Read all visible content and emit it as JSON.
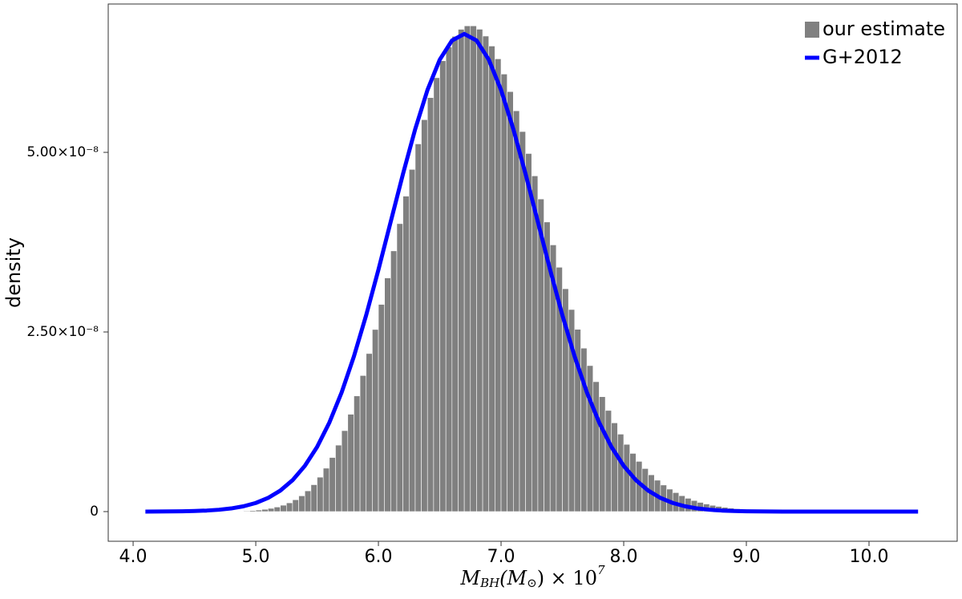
{
  "chart_data": {
    "type": "histogram",
    "ylabel": "density",
    "xlabel": [
      "M",
      "BH",
      "(M",
      "⊙",
      ") × 10",
      "7"
    ],
    "xlim": [
      3.797,
      10.719
    ],
    "ylim": [
      -4.13e-09,
      7.065e-08
    ],
    "xticks": [
      {
        "value": 4,
        "label": "4.0"
      },
      {
        "value": 5,
        "label": "5.0"
      },
      {
        "value": 6,
        "label": "6.0"
      },
      {
        "value": 7,
        "label": "7.0"
      },
      {
        "value": 8,
        "label": "8.0"
      },
      {
        "value": 9,
        "label": "9.0"
      },
      {
        "value": 10,
        "label": "10.0"
      }
    ],
    "yticks": [
      0,
      {
        "value": 2.5e-08,
        "label": "2.50×10⁻⁸"
      },
      {
        "value": 5e-08,
        "label": "5.00×10⁻⁸"
      }
    ],
    "grid": false,
    "legend": "upper right",
    "series": [
      {
        "name": "our estimate",
        "type": "histogram",
        "color": "#808080",
        "bins": [
          4.8,
          4.85,
          4.9,
          4.95,
          5.0,
          5.05,
          5.1,
          5.15,
          5.2,
          5.25,
          5.3,
          5.35,
          5.4,
          5.45,
          5.5,
          5.55,
          5.6,
          5.65,
          5.7,
          5.75,
          5.8,
          5.85,
          5.9,
          5.95,
          6.0,
          6.05,
          6.1,
          6.15,
          6.2,
          6.25,
          6.3,
          6.35,
          6.4,
          6.45,
          6.5,
          6.55,
          6.6,
          6.65,
          6.7,
          6.75,
          6.8,
          6.85,
          6.9,
          6.95,
          7.0,
          7.05,
          7.1,
          7.15,
          7.2,
          7.25,
          7.3,
          7.35,
          7.4,
          7.45,
          7.5,
          7.55,
          7.6,
          7.65,
          7.7,
          7.75,
          7.8,
          7.85,
          7.9,
          7.95,
          8.0,
          8.05,
          8.1,
          8.15,
          8.2,
          8.25,
          8.3,
          8.35,
          8.4,
          8.45,
          8.5,
          8.55,
          8.6,
          8.65,
          8.7,
          8.75,
          8.8,
          8.85,
          8.9,
          8.95,
          9.0,
          9.05,
          9.1,
          9.15,
          9.2
        ],
        "values": [
          3.9e-11,
          6.2e-11,
          9.5e-11,
          1.44e-10,
          2.15e-10,
          3.14e-10,
          4.51e-10,
          6.38e-10,
          8.88e-10,
          1.217e-09,
          1.648e-09,
          2.195e-09,
          2.886e-09,
          3.742e-09,
          4.79e-09,
          6.042e-09,
          7.529e-09,
          9.252e-09,
          1.127e-08,
          1.355e-08,
          1.61e-08,
          1.894e-08,
          2.2e-08,
          2.535e-08,
          2.884e-08,
          3.252e-08,
          3.629e-08,
          4.008e-08,
          4.391e-08,
          4.763e-08,
          5.118e-08,
          5.455e-08,
          5.762e-08,
          6.039e-08,
          6.275e-08,
          6.467e-08,
          6.615e-08,
          6.713e-08,
          6.761e-08,
          6.761e-08,
          6.714e-08,
          6.619e-08,
          6.48e-08,
          6.302e-08,
          6.09e-08,
          5.846e-08,
          5.579e-08,
          5.29e-08,
          4.984e-08,
          4.673e-08,
          4.351e-08,
          4.031e-08,
          3.712e-08,
          3.401e-08,
          3.102e-08,
          2.813e-08,
          2.537e-08,
          2.275e-08,
          2.032e-08,
          1.808e-08,
          1.599e-08,
          1.408e-08,
          1.235e-08,
          1.078e-08,
          9.36e-09,
          8.1e-09,
          6.99e-09,
          5.99e-09,
          5.12e-09,
          4.37e-09,
          3.7e-09,
          3.13e-09,
          2.64e-09,
          2.21e-09,
          1.85e-09,
          1.54e-09,
          1.28e-09,
          1.06e-09,
          8.7e-10,
          7.2e-10,
          5.9e-10,
          4.8e-10,
          3.9e-10,
          3.2e-10,
          2.6e-10,
          2.1e-10,
          1.7e-10,
          1.3e-10
        ]
      },
      {
        "name": "G+2012",
        "type": "line",
        "color": "#0000ff",
        "x": [
          4.1,
          4.2,
          4.3,
          4.4,
          4.5,
          4.6,
          4.7,
          4.8,
          4.9,
          5.0,
          5.1,
          5.2,
          5.3,
          5.4,
          5.5,
          5.6,
          5.7,
          5.8,
          5.9,
          6.0,
          6.1,
          6.2,
          6.3,
          6.4,
          6.5,
          6.6,
          6.7,
          6.8,
          6.9,
          7.0,
          7.1,
          7.2,
          7.3,
          7.4,
          7.5,
          7.6,
          7.7,
          7.8,
          7.9,
          8.0,
          8.1,
          8.2,
          8.3,
          8.4,
          8.5,
          8.6,
          8.7,
          8.8,
          8.9,
          9.0,
          9.1,
          9.2,
          9.3,
          9.4,
          9.5,
          9.6,
          9.7,
          9.8,
          9.9,
          10.0,
          10.1,
          10.2,
          10.3,
          10.4
        ],
        "values": [
          5.56e-12,
          1.13e-11,
          2.23e-11,
          4.28e-11,
          8e-11,
          1.46e-10,
          2.57e-10,
          4.42e-10,
          7.39e-10,
          1.2e-09,
          1.9e-09,
          2.92e-09,
          4.37e-09,
          6.36e-09,
          9e-09,
          1.239e-08,
          1.658e-08,
          2.159e-08,
          2.733e-08,
          3.366e-08,
          4.033e-08,
          4.698e-08,
          5.324e-08,
          5.868e-08,
          6.29e-08,
          6.557e-08,
          6.649e-08,
          6.557e-08,
          6.29e-08,
          5.868e-08,
          5.324e-08,
          4.698e-08,
          4.033e-08,
          3.366e-08,
          2.733e-08,
          2.159e-08,
          1.658e-08,
          1.239e-08,
          9e-09,
          6.36e-09,
          4.37e-09,
          2.92e-09,
          1.9e-09,
          1.2e-09,
          7.39e-10,
          4.42e-10,
          2.57e-10,
          1.46e-10,
          8e-11,
          4.28e-11,
          2.23e-11,
          1.13e-11,
          5.56e-12,
          2.67e-12,
          1.24e-12,
          5.6e-13,
          2.5e-13,
          0,
          0,
          0,
          0,
          0,
          0,
          0
        ]
      }
    ]
  }
}
